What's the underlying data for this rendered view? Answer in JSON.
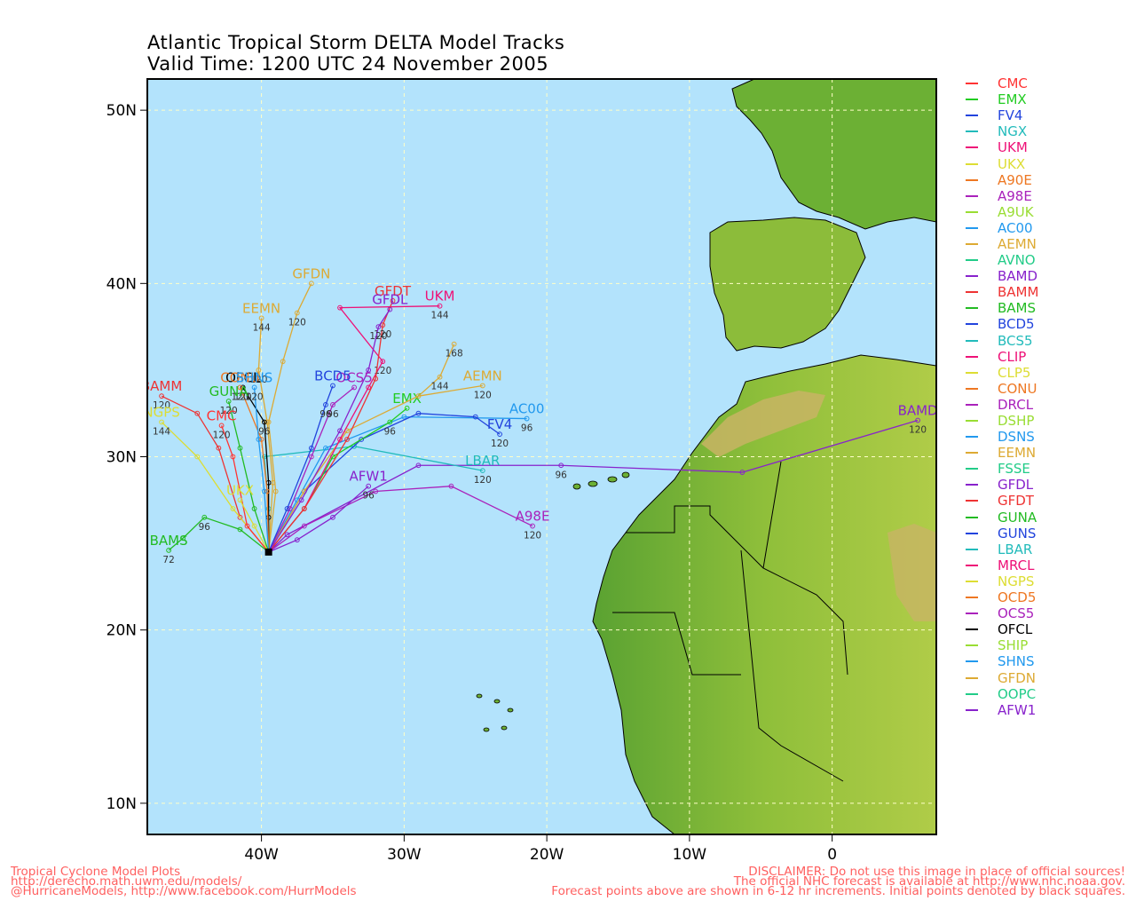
{
  "title": {
    "line1": "Atlantic Tropical Storm DELTA Model Tracks",
    "line2": "Valid Time: 1200 UTC 24 November 2005"
  },
  "axes": {
    "lat_ticks": [
      "50N",
      "40N",
      "30N",
      "20N",
      "10N"
    ],
    "lon_ticks": [
      "40W",
      "30W",
      "20W",
      "10W",
      "0"
    ],
    "lat_values": [
      50,
      40,
      30,
      20,
      10
    ],
    "lon_values": [
      -40,
      -30,
      -20,
      -10,
      0
    ],
    "lat_range": [
      8.2,
      51.8
    ],
    "lon_range": [
      -48.0,
      7.3
    ],
    "grid": true
  },
  "colors": {
    "ocean": "#b3e3fc",
    "land_low": "#5aa232",
    "land_mid": "#9cc43c",
    "land_high": "#c8b464",
    "grid": "#ffffc8"
  },
  "legend": [
    {
      "name": "CMC",
      "color": "#ff3333"
    },
    {
      "name": "EMX",
      "color": "#22cc22"
    },
    {
      "name": "FV4",
      "color": "#2244dd"
    },
    {
      "name": "NGX",
      "color": "#22bbbb"
    },
    {
      "name": "UKM",
      "color": "#ee1177"
    },
    {
      "name": "UKX",
      "color": "#dddd33"
    },
    {
      "name": "A90E",
      "color": "#ee7722"
    },
    {
      "name": "A98E",
      "color": "#aa22bb"
    },
    {
      "name": "A9UK",
      "color": "#99dd33"
    },
    {
      "name": "AC00",
      "color": "#2299ee"
    },
    {
      "name": "AEMN",
      "color": "#ddaa33"
    },
    {
      "name": "AVNO",
      "color": "#22cc88"
    },
    {
      "name": "BAMD",
      "color": "#8822cc"
    },
    {
      "name": "BAMM",
      "color": "#ee3333"
    },
    {
      "name": "BAMS",
      "color": "#22bb22"
    },
    {
      "name": "BCD5",
      "color": "#2244dd"
    },
    {
      "name": "BCS5",
      "color": "#22bbbb"
    },
    {
      "name": "CLIP",
      "color": "#ee1177"
    },
    {
      "name": "CLP5",
      "color": "#dddd33"
    },
    {
      "name": "CONU",
      "color": "#ee7722"
    },
    {
      "name": "DRCL",
      "color": "#aa22bb"
    },
    {
      "name": "DSHP",
      "color": "#99dd33"
    },
    {
      "name": "DSNS",
      "color": "#2299ee"
    },
    {
      "name": "EEMN",
      "color": "#ddaa33"
    },
    {
      "name": "FSSE",
      "color": "#22cc88"
    },
    {
      "name": "GFDL",
      "color": "#8822cc"
    },
    {
      "name": "GFDT",
      "color": "#ee3333"
    },
    {
      "name": "GUNA",
      "color": "#22bb22"
    },
    {
      "name": "GUNS",
      "color": "#2244dd"
    },
    {
      "name": "LBAR",
      "color": "#22bbbb"
    },
    {
      "name": "MRCL",
      "color": "#ee1177"
    },
    {
      "name": "NGPS",
      "color": "#dddd33"
    },
    {
      "name": "OCD5",
      "color": "#ee7722"
    },
    {
      "name": "OCS5",
      "color": "#aa22bb"
    },
    {
      "name": "OFCL",
      "color": "#000000"
    },
    {
      "name": "SHIP",
      "color": "#99dd33"
    },
    {
      "name": "SHNS",
      "color": "#2299ee"
    },
    {
      "name": "GFDN",
      "color": "#ddaa33"
    },
    {
      "name": "OOPC",
      "color": "#22cc88"
    },
    {
      "name": "AFW1",
      "color": "#8822cc"
    }
  ],
  "tracks": [
    {
      "name": "BAMD",
      "color": "#8822cc",
      "label": "BAMD",
      "points": [
        [
          -39.5,
          24.5
        ],
        [
          -38.2,
          25.5
        ],
        [
          -29,
          29.5
        ],
        [
          -19,
          29.5
        ],
        [
          -6.3,
          29.1
        ],
        [
          6,
          32.1
        ]
      ],
      "hours": {
        "3": "96",
        "5": "120"
      }
    },
    {
      "name": "A98E",
      "color": "#aa22bb",
      "label": "A98E",
      "points": [
        [
          -39.5,
          24.5
        ],
        [
          -37,
          26
        ],
        [
          -32,
          28
        ],
        [
          -26.7,
          28.3
        ],
        [
          -21,
          26
        ]
      ],
      "hours": {
        "4": "120"
      }
    },
    {
      "name": "AFW1",
      "color": "#8822cc",
      "label": "AFW1",
      "points": [
        [
          -39.5,
          24.5
        ],
        [
          -37.5,
          25.2
        ],
        [
          -35,
          26.5
        ],
        [
          -32.5,
          28.3
        ]
      ],
      "hours": {
        "3": "96"
      }
    },
    {
      "name": "LBAR",
      "color": "#22bbbb",
      "label": "LBAR",
      "points": [
        [
          -39.5,
          24.5
        ],
        [
          -39.5,
          27
        ],
        [
          -39.8,
          30
        ],
        [
          -33.5,
          30.6
        ],
        [
          -24.5,
          29.2
        ]
      ],
      "hours": {
        "4": "120"
      }
    },
    {
      "name": "AC00",
      "color": "#2299ee",
      "label": "AC00",
      "points": [
        [
          -39.5,
          24.5
        ],
        [
          -37.5,
          27.5
        ],
        [
          -35.5,
          30.5
        ],
        [
          -30,
          32.3
        ],
        [
          -21.4,
          32.2
        ]
      ],
      "hours": {
        "4": "96"
      }
    },
    {
      "name": "FV4",
      "color": "#2244dd",
      "label": "FV4",
      "points": [
        [
          -39.5,
          24.5
        ],
        [
          -37,
          28
        ],
        [
          -33,
          31
        ],
        [
          -29,
          32.5
        ],
        [
          -25,
          32.3
        ],
        [
          -23.3,
          31.3
        ]
      ],
      "hours": {
        "5": "120"
      }
    },
    {
      "name": "EMX",
      "color": "#22cc22",
      "label": "EMX",
      "points": [
        [
          -39.5,
          24.5
        ],
        [
          -37,
          27
        ],
        [
          -35,
          30
        ],
        [
          -31,
          32
        ],
        [
          -29.8,
          32.8
        ]
      ],
      "hours": {
        "3": "96"
      }
    },
    {
      "name": "AEMN",
      "color": "#ddaa33",
      "label": "AEMN",
      "points": [
        [
          -39.5,
          24.5
        ],
        [
          -37,
          28
        ],
        [
          -34,
          31.5
        ],
        [
          -29,
          33.5
        ],
        [
          -24.5,
          34.1
        ]
      ],
      "hours": {
        "4": "120"
      }
    },
    {
      "name": "AEMN_EXT",
      "color": "#ddaa33",
      "label": "",
      "points": [
        [
          -29,
          33.5
        ],
        [
          -27.5,
          34.6
        ],
        [
          -26.5,
          36.5
        ]
      ],
      "hours": {
        "1": "144",
        "2": "168"
      }
    },
    {
      "name": "UKM",
      "color": "#ee1177",
      "label": "UKM",
      "points": [
        [
          -39.5,
          24.5
        ],
        [
          -37,
          27
        ],
        [
          -34.5,
          31
        ],
        [
          -32.5,
          34
        ],
        [
          -31.5,
          35.5
        ],
        [
          -34.5,
          38.6
        ],
        [
          -27.5,
          38.7
        ]
      ],
      "hours": {
        "4": "120",
        "6": "144"
      }
    },
    {
      "name": "GFDT",
      "color": "#ee3333",
      "label": "GFDT",
      "points": [
        [
          -39.5,
          24.5
        ],
        [
          -37,
          27
        ],
        [
          -34,
          31
        ],
        [
          -32,
          34.5
        ],
        [
          -31.5,
          37.6
        ],
        [
          -30.8,
          39
        ]
      ],
      "hours": {
        "4": "120"
      }
    },
    {
      "name": "GFDL",
      "color": "#8822cc",
      "label": "GFDL",
      "points": [
        [
          -39.5,
          24.5
        ],
        [
          -37.2,
          27.5
        ],
        [
          -34.5,
          31.5
        ],
        [
          -32.5,
          35
        ],
        [
          -31.8,
          37.5
        ],
        [
          -31,
          38.5
        ]
      ],
      "hours": {
        "4": "120"
      }
    },
    {
      "name": "OCS5",
      "color": "#aa22bb",
      "label": "OCS5",
      "points": [
        [
          -39.5,
          24.5
        ],
        [
          -38,
          27
        ],
        [
          -36.5,
          30
        ],
        [
          -35,
          33
        ],
        [
          -33.5,
          34
        ]
      ],
      "hours": {
        "3": "96"
      }
    },
    {
      "name": "BCD5",
      "color": "#2244dd",
      "label": "BCD5",
      "points": [
        [
          -39.5,
          24.5
        ],
        [
          -38.2,
          27
        ],
        [
          -36.5,
          30.5
        ],
        [
          -35.5,
          33
        ],
        [
          -35,
          34.1
        ]
      ],
      "hours": {
        "3": "96"
      }
    },
    {
      "name": "GFDN",
      "color": "#ddaa33",
      "label": "GFDN",
      "points": [
        [
          -39.5,
          24.5
        ],
        [
          -39,
          28
        ],
        [
          -39.5,
          32
        ],
        [
          -38.5,
          35.5
        ],
        [
          -37.5,
          38.3
        ],
        [
          -36.5,
          40
        ]
      ],
      "hours": {
        "4": "120"
      }
    },
    {
      "name": "EEMN",
      "color": "#ddaa33",
      "label": "EEMN",
      "points": [
        [
          -39.5,
          24.5
        ],
        [
          -39.2,
          28.5
        ],
        [
          -39.6,
          32
        ],
        [
          -40.2,
          35
        ],
        [
          -40,
          38
        ]
      ],
      "hours": {
        "3": "120",
        "4": "144"
      }
    },
    {
      "name": "OFCL",
      "color": "#000000",
      "label": "OFCL",
      "points": [
        [
          -39.5,
          24.5
        ],
        [
          -39.5,
          26.5
        ],
        [
          -39.5,
          28.5
        ],
        [
          -39.8,
          32
        ],
        [
          -41.3,
          34
        ]
      ],
      "hours": {
        "3": "96",
        "4": "120"
      }
    },
    {
      "name": "CONU",
      "color": "#ee7722",
      "label": "CONU",
      "points": [
        [
          -39.5,
          24.5
        ],
        [
          -39.6,
          28
        ],
        [
          -40,
          31
        ],
        [
          -41.5,
          34
        ]
      ],
      "hours": {
        "3": "120"
      }
    },
    {
      "name": "SHNS",
      "color": "#2299ee",
      "label": "SHNS",
      "points": [
        [
          -39.5,
          24.5
        ],
        [
          -39.8,
          28
        ],
        [
          -40.2,
          31
        ],
        [
          -40.5,
          34
        ]
      ],
      "hours": {
        "3": "120"
      }
    },
    {
      "name": "GUNA",
      "color": "#22bb22",
      "label": "GUNA",
      "points": [
        [
          -39.5,
          24.5
        ],
        [
          -40.5,
          27
        ],
        [
          -41.5,
          30.5
        ],
        [
          -42.3,
          33.2
        ]
      ],
      "hours": {
        "3": "120"
      }
    },
    {
      "name": "BAMM",
      "color": "#ee3333",
      "label": "BAMM",
      "points": [
        [
          -39.5,
          24.5
        ],
        [
          -41.5,
          26.5
        ],
        [
          -43,
          30.5
        ],
        [
          -44.5,
          32.5
        ],
        [
          -47,
          33.5
        ]
      ],
      "hours": {
        "4": "120"
      }
    },
    {
      "name": "NGPS",
      "color": "#dddd33",
      "label": "NGPS",
      "points": [
        [
          -39.5,
          24.5
        ],
        [
          -42,
          27
        ],
        [
          -44.5,
          30
        ],
        [
          -47,
          32
        ]
      ],
      "hours": {
        "3": "144"
      }
    },
    {
      "name": "BAMS",
      "color": "#22bb22",
      "label": "BAMS",
      "points": [
        [
          -39.5,
          24.5
        ],
        [
          -41.5,
          25.8
        ],
        [
          -44,
          26.5
        ],
        [
          -45.5,
          25.3
        ],
        [
          -46.5,
          24.6
        ]
      ],
      "hours": {
        "2": "96",
        "4": "72"
      }
    },
    {
      "name": "CMC",
      "color": "#ff3333",
      "label": "CMC",
      "points": [
        [
          -39.5,
          24.5
        ],
        [
          -41,
          26
        ],
        [
          -42,
          30
        ],
        [
          -42.8,
          31.8
        ]
      ],
      "hours": {
        "3": "120"
      }
    },
    {
      "name": "UKX",
      "color": "#dddd33",
      "label": "UKX",
      "points": [
        [
          -39.5,
          24.5
        ],
        [
          -40.5,
          26
        ],
        [
          -41.5,
          27.5
        ]
      ],
      "hours": {}
    }
  ],
  "footer": {
    "left1": "Tropical Cyclone Model Plots",
    "left2": "http://derecho.math.uwm.edu/models/",
    "left3": "@HurricaneModels, http://www.facebook.com/HurrModels",
    "right1": "DISCLAIMER: Do not use this image in place of official sources!",
    "right2": "The official NHC forecast is available at http://www.nhc.noaa.gov.",
    "right3": "Forecast points above are shown in 6-12 hr increments. Initial points denoted by black squares."
  }
}
